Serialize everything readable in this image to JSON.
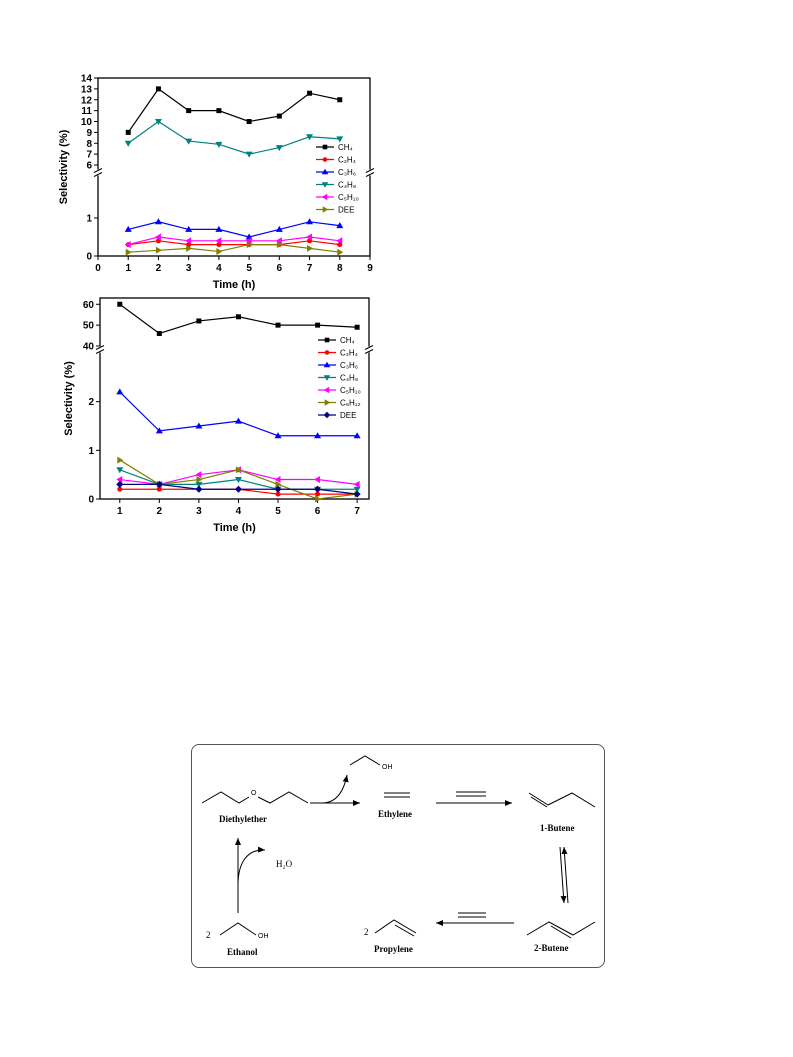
{
  "colors": {
    "series": [
      "#000000",
      "#ff0000",
      "#0000ff",
      "#008080",
      "#ff00ff",
      "#808000",
      "#000080"
    ]
  },
  "chart_data": [
    {
      "type": "line",
      "xlabel": "Time (h)",
      "ylabel": "Selectivity (%)",
      "xlim": [
        0,
        9
      ],
      "x_ticks": [
        "0",
        "1",
        "2",
        "3",
        "4",
        "5",
        "6",
        "7",
        "8",
        "9"
      ],
      "y_ticks_lower": [
        "0",
        "1"
      ],
      "y_ticks_upper": [
        "6",
        "7",
        "8",
        "9",
        "10",
        "11",
        "12",
        "13",
        "14"
      ],
      "ylim_lower": [
        0,
        2
      ],
      "ylim_upper": [
        6,
        14
      ],
      "broken_axis": true,
      "legend_position": "right",
      "x": [
        1,
        2,
        3,
        4,
        5,
        6,
        7,
        8
      ],
      "series": [
        {
          "name": "CH₄",
          "marker": "square",
          "color": "#000000",
          "values": [
            9,
            13,
            11,
            11,
            10,
            10.5,
            12.6,
            12
          ]
        },
        {
          "name": "C₂H₄",
          "marker": "circle",
          "color": "#ff0000",
          "values": [
            0.3,
            0.4,
            0.3,
            0.3,
            0.3,
            0.3,
            0.4,
            0.3
          ]
        },
        {
          "name": "C₃H₆",
          "marker": "triangle-up",
          "color": "#0000ff",
          "values": [
            0.7,
            0.9,
            0.7,
            0.7,
            0.5,
            0.7,
            0.9,
            0.8
          ]
        },
        {
          "name": "C₄H₈",
          "marker": "triangle-down",
          "color": "#008080",
          "values": [
            8,
            10,
            8.2,
            7.9,
            7,
            7.6,
            8.6,
            8.4
          ]
        },
        {
          "name": "C₅H₁₀",
          "marker": "triangle-left",
          "color": "#ff00ff",
          "values": [
            0.3,
            0.5,
            0.4,
            0.4,
            0.4,
            0.4,
            0.5,
            0.4
          ]
        },
        {
          "name": "DEE",
          "marker": "triangle-right",
          "color": "#808000",
          "values": [
            0.1,
            0.15,
            0.2,
            0.12,
            0.3,
            0.3,
            0.2,
            0.1
          ]
        }
      ]
    },
    {
      "type": "line",
      "xlabel": "Time (h)",
      "ylabel": "Selectivity (%)",
      "xlim": [
        0.5,
        7.3
      ],
      "x_ticks": [
        "1",
        "2",
        "3",
        "4",
        "5",
        "6",
        "7"
      ],
      "y_ticks_lower": [
        "0",
        "1",
        "2"
      ],
      "y_ticks_upper": [
        "40",
        "50",
        "60"
      ],
      "ylim_lower": [
        0,
        3
      ],
      "ylim_upper": [
        40,
        63
      ],
      "broken_axis": true,
      "legend_position": "right",
      "x": [
        1,
        2,
        3,
        4,
        5,
        6,
        7
      ],
      "series": [
        {
          "name": "CH₄",
          "marker": "square",
          "color": "#000000",
          "values": [
            60,
            46,
            52,
            54,
            50,
            50,
            49
          ]
        },
        {
          "name": "C₂H₄",
          "marker": "circle",
          "color": "#ff0000",
          "values": [
            0.2,
            0.2,
            0.2,
            0.2,
            0.1,
            0.1,
            0.1
          ]
        },
        {
          "name": "C₃H₆",
          "marker": "triangle-up",
          "color": "#0000ff",
          "values": [
            2.2,
            1.4,
            1.5,
            1.6,
            1.3,
            1.3,
            1.3
          ]
        },
        {
          "name": "C₄H₈",
          "marker": "triangle-down",
          "color": "#008080",
          "values": [
            0.6,
            0.3,
            0.3,
            0.4,
            0.2,
            0.2,
            0.2
          ]
        },
        {
          "name": "C₅H₁₀",
          "marker": "triangle-left",
          "color": "#ff00ff",
          "values": [
            0.4,
            0.3,
            0.5,
            0.6,
            0.4,
            0.4,
            0.3
          ]
        },
        {
          "name": "C₆H₁₂",
          "marker": "triangle-right",
          "color": "#808000",
          "values": [
            0.8,
            0.3,
            0.4,
            0.6,
            0.3,
            0.0,
            0.1
          ]
        },
        {
          "name": "DEE",
          "marker": "diamond",
          "color": "#000080",
          "values": [
            0.3,
            0.3,
            0.2,
            0.2,
            0.2,
            0.2,
            0.1
          ]
        }
      ]
    }
  ],
  "scheme": {
    "diethylether": "Diethylether",
    "ethylene": "Ethylene",
    "butene1": "1-Butene",
    "butene2": "2-Butene",
    "propylene": "Propylene",
    "ethanol": "Ethanol",
    "ether_o": "O",
    "oh_top": "OH",
    "oh_bottom": "OH",
    "water": "H₂O",
    "coef_ethanol": "2",
    "coef_propylene": "2"
  }
}
